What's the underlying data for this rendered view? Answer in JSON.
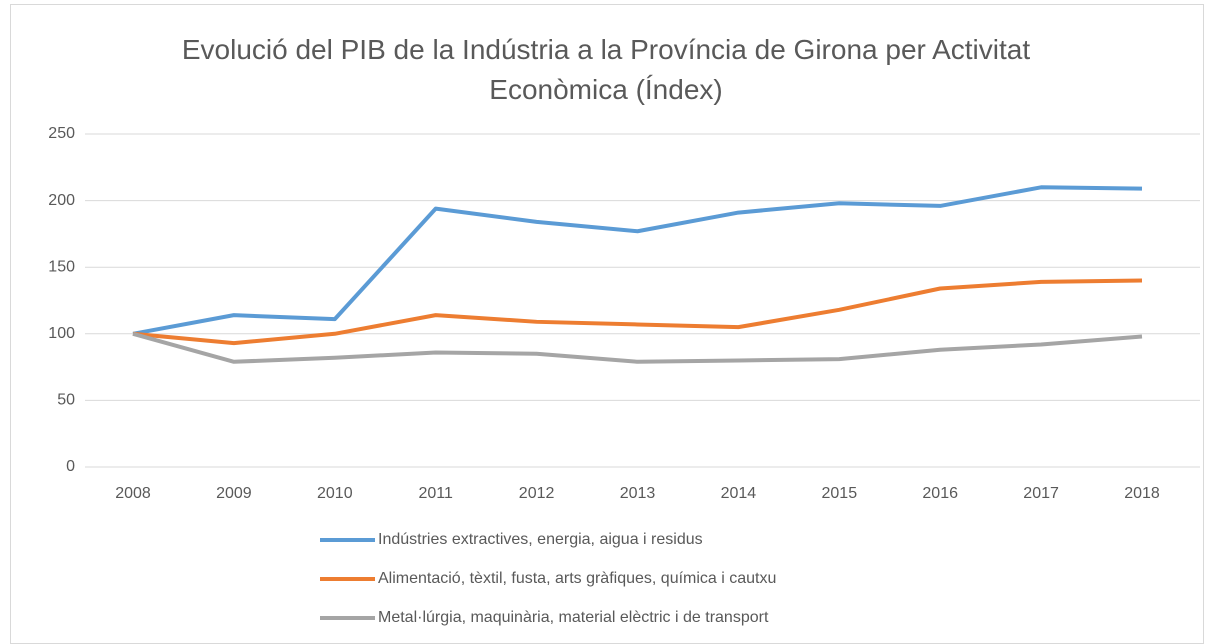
{
  "chart_data": {
    "type": "line",
    "title": "Evolució del PIB de la Indústria a la Província de Girona per Activitat Econòmica (Índex)",
    "categories": [
      "2008",
      "2009",
      "2010",
      "2011",
      "2012",
      "2013",
      "2014",
      "2015",
      "2016",
      "2017",
      "2018"
    ],
    "series": [
      {
        "name": "Indústries extractives, energia, aigua i residus",
        "color": "#5b9bd5",
        "values": [
          100,
          114,
          111,
          194,
          184,
          177,
          191,
          198,
          196,
          210,
          209
        ]
      },
      {
        "name": "Alimentació, tèxtil, fusta, arts gràfiques, química i cautxu",
        "color": "#ed7d31",
        "values": [
          100,
          93,
          100,
          114,
          109,
          107,
          105,
          118,
          134,
          139,
          140
        ]
      },
      {
        "name": "Metal·lúrgia, maquinària, material elèctric i de transport",
        "color": "#a5a5a5",
        "values": [
          100,
          79,
          82,
          86,
          85,
          79,
          80,
          81,
          88,
          92,
          98
        ]
      }
    ],
    "ylim": [
      0,
      250
    ],
    "yticks": [
      0,
      50,
      100,
      150,
      200,
      250
    ],
    "grid": true,
    "legend": "bottom"
  }
}
